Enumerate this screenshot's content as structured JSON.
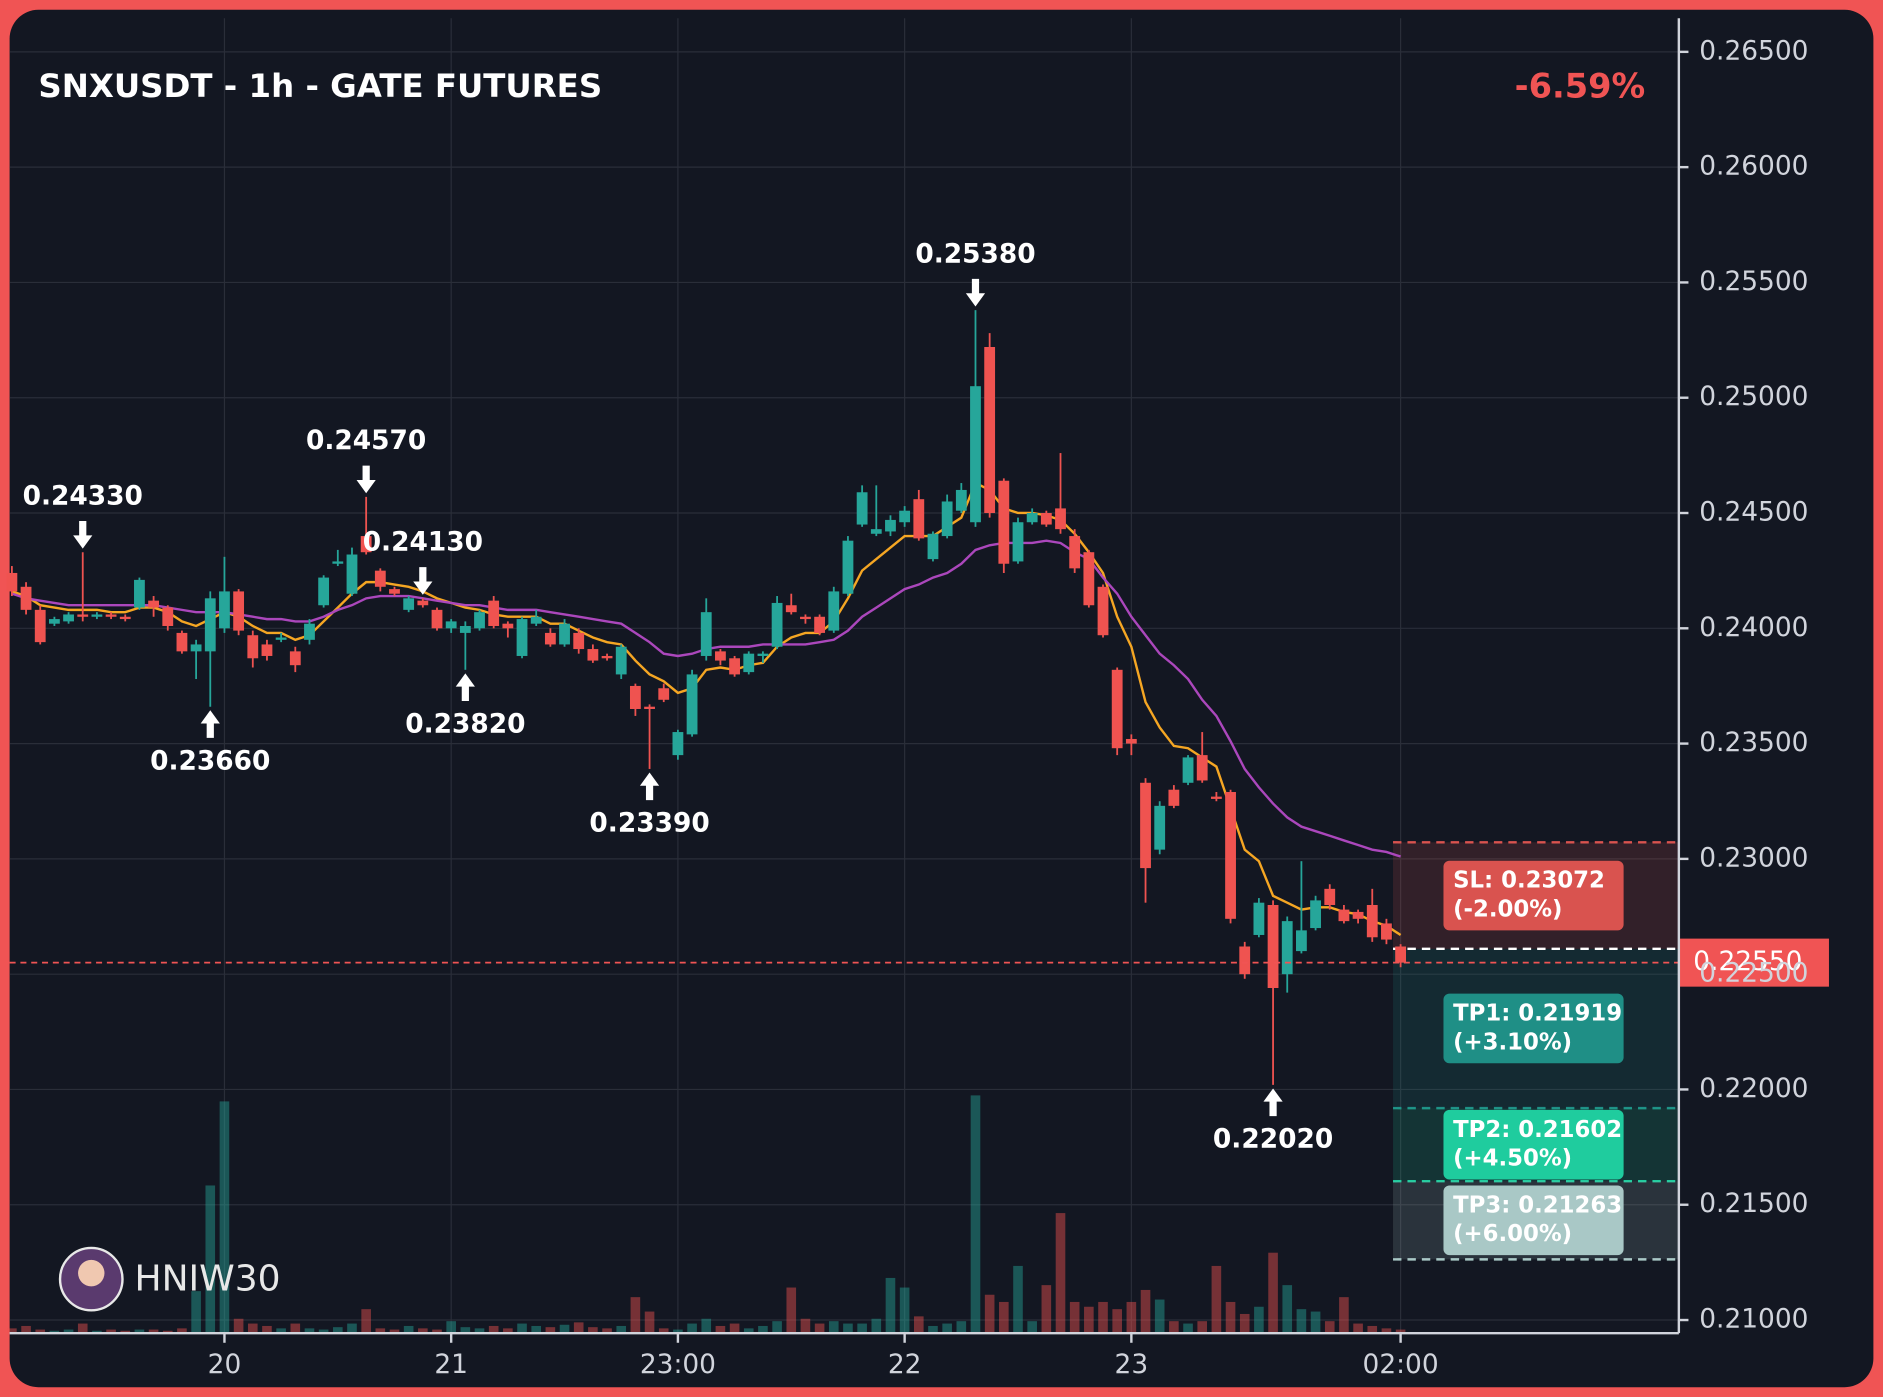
{
  "chart_data": {
    "type": "candlestick",
    "title": "SNXUSDT - 1h - GATE FUTURES",
    "change": "-6.59%",
    "watermark": "HNIW30",
    "categories": [
      null,
      null,
      null,
      null,
      null,
      null,
      null,
      null,
      null,
      null,
      null,
      null,
      null,
      null,
      null,
      "20",
      null,
      null,
      null,
      null,
      null,
      null,
      null,
      null,
      null,
      null,
      null,
      null,
      null,
      null,
      null,
      "21",
      null,
      null,
      null,
      null,
      null,
      null,
      null,
      null,
      null,
      null,
      null,
      null,
      null,
      null,
      null,
      "23:00",
      null,
      null,
      null,
      null,
      null,
      null,
      null,
      null,
      null,
      null,
      null,
      null,
      null,
      null,
      null,
      "22",
      null,
      null,
      null,
      null,
      null,
      null,
      null,
      null,
      null,
      null,
      null,
      null,
      null,
      null,
      null,
      "23",
      null,
      null,
      null,
      null,
      null,
      null,
      null,
      null,
      null,
      null,
      null,
      null,
      null,
      null,
      null,
      null,
      null,
      null,
      "02:00"
    ],
    "open": [
      0.2424,
      0.2418,
      0.2408,
      0.2402,
      0.2403,
      0.2406,
      0.2405,
      0.2406,
      0.2405,
      0.2409,
      0.2412,
      0.2409,
      0.2398,
      0.239,
      0.239,
      0.24,
      0.2416,
      0.2397,
      0.2393,
      0.2395,
      0.239,
      0.2395,
      0.241,
      0.2428,
      0.2415,
      0.244,
      0.2425,
      0.2417,
      0.2408,
      0.2412,
      0.2408,
      0.24,
      0.2398,
      0.24,
      0.2412,
      0.2402,
      0.2388,
      0.2402,
      0.2398,
      0.2393,
      0.2398,
      0.2391,
      0.2388,
      0.238,
      0.2375,
      0.2366,
      0.2374,
      0.2345,
      0.2354,
      0.2388,
      0.239,
      0.2387,
      0.2381,
      0.2388,
      0.2392,
      0.241,
      0.2405,
      0.2405,
      0.2399,
      0.2415,
      0.2445,
      0.2441,
      0.2442,
      0.2446,
      0.2456,
      0.243,
      0.244,
      0.2451,
      0.2446,
      0.2522,
      0.2464,
      0.2429,
      0.2446,
      0.245,
      0.2452,
      0.244,
      0.2433,
      0.2418,
      0.2382,
      0.2352,
      0.2333,
      0.2304,
      0.233,
      0.2333,
      0.2345,
      0.2327,
      0.2329,
      0.2262,
      0.2267,
      0.228,
      0.225,
      0.226,
      0.227,
      0.2287,
      0.2278,
      0.2277,
      0.228,
      0.2272,
      0.2262
    ],
    "high": [
      0.2427,
      0.242,
      0.241,
      0.2405,
      0.2407,
      0.2433,
      0.2407,
      0.2407,
      0.2406,
      0.2422,
      0.2414,
      0.241,
      0.2399,
      0.2395,
      0.2416,
      0.2431,
      0.2417,
      0.2399,
      0.2395,
      0.2398,
      0.2392,
      0.2404,
      0.2423,
      0.2434,
      0.2435,
      0.2457,
      0.2426,
      0.2418,
      0.2414,
      0.2413,
      0.2409,
      0.2404,
      0.2403,
      0.2408,
      0.2414,
      0.2403,
      0.2405,
      0.2408,
      0.24,
      0.2404,
      0.24,
      0.2393,
      0.2389,
      0.2393,
      0.2376,
      0.2367,
      0.2376,
      0.2356,
      0.2382,
      0.2413,
      0.2391,
      0.2388,
      0.239,
      0.239,
      0.2414,
      0.2415,
      0.2406,
      0.2406,
      0.2418,
      0.244,
      0.2462,
      0.2462,
      0.2449,
      0.2453,
      0.246,
      0.2442,
      0.2458,
      0.2463,
      0.2538,
      0.2528,
      0.2465,
      0.2448,
      0.2452,
      0.2451,
      0.2476,
      0.2443,
      0.2434,
      0.2419,
      0.2383,
      0.2354,
      0.2335,
      0.2325,
      0.2332,
      0.2345,
      0.2355,
      0.2329,
      0.233,
      0.2264,
      0.2283,
      0.2282,
      0.2275,
      0.2299,
      0.2284,
      0.2289,
      0.228,
      0.2278,
      0.2287,
      0.2274,
      0.2263
    ],
    "low": [
      0.2414,
      0.2406,
      0.2393,
      0.2401,
      0.2402,
      0.2403,
      0.2404,
      0.2404,
      0.2403,
      0.2408,
      0.2405,
      0.2399,
      0.2389,
      0.2378,
      0.2366,
      0.2398,
      0.2397,
      0.2383,
      0.2386,
      0.2394,
      0.2381,
      0.2393,
      0.2409,
      0.2427,
      0.2414,
      0.2432,
      0.2416,
      0.2414,
      0.2407,
      0.2409,
      0.2399,
      0.2398,
      0.2382,
      0.2399,
      0.24,
      0.2396,
      0.2387,
      0.2401,
      0.2392,
      0.2392,
      0.2389,
      0.2385,
      0.2386,
      0.2378,
      0.2362,
      0.2339,
      0.2368,
      0.2343,
      0.2353,
      0.2386,
      0.2384,
      0.2379,
      0.238,
      0.2385,
      0.2391,
      0.2406,
      0.2402,
      0.2397,
      0.2398,
      0.2414,
      0.2444,
      0.244,
      0.244,
      0.2444,
      0.2438,
      0.2429,
      0.2439,
      0.245,
      0.2444,
      0.2448,
      0.2424,
      0.2428,
      0.2445,
      0.2444,
      0.2441,
      0.2424,
      0.2409,
      0.2396,
      0.2345,
      0.2345,
      0.2281,
      0.2302,
      0.2322,
      0.2332,
      0.2333,
      0.2325,
      0.2272,
      0.2248,
      0.2266,
      0.2202,
      0.2242,
      0.2259,
      0.2269,
      0.2278,
      0.2272,
      0.2272,
      0.2264,
      0.2263,
      0.2253
    ],
    "close": [
      0.2416,
      0.2408,
      0.2394,
      0.2404,
      0.2406,
      0.2405,
      0.2406,
      0.2405,
      0.2404,
      0.2421,
      0.2409,
      0.2401,
      0.239,
      0.2393,
      0.2413,
      0.2416,
      0.2399,
      0.2387,
      0.2388,
      0.2396,
      0.2384,
      0.2402,
      0.2422,
      0.2429,
      0.2432,
      0.2433,
      0.2418,
      0.2415,
      0.2413,
      0.241,
      0.24,
      0.2403,
      0.2401,
      0.2407,
      0.2401,
      0.24,
      0.2404,
      0.2405,
      0.2393,
      0.2402,
      0.2391,
      0.2386,
      0.2387,
      0.2392,
      0.2365,
      0.2365,
      0.2369,
      0.2355,
      0.238,
      0.2407,
      0.2386,
      0.238,
      0.2389,
      0.2389,
      0.2411,
      0.2407,
      0.2404,
      0.2398,
      0.2416,
      0.2438,
      0.2459,
      0.2443,
      0.2447,
      0.2451,
      0.2439,
      0.2441,
      0.2455,
      0.246,
      0.2505,
      0.245,
      0.2428,
      0.2446,
      0.245,
      0.2445,
      0.2443,
      0.2426,
      0.241,
      0.2397,
      0.2348,
      0.235,
      0.2296,
      0.2323,
      0.2323,
      0.2344,
      0.2334,
      0.2326,
      0.2274,
      0.225,
      0.2281,
      0.2244,
      0.2273,
      0.2269,
      0.2282,
      0.228,
      0.2273,
      0.2274,
      0.2266,
      0.2265,
      0.2255
    ],
    "volume": [
      4,
      6,
      3,
      2,
      3,
      8,
      2,
      3,
      2,
      3,
      3,
      2,
      4,
      35,
      123,
      193,
      12,
      8,
      6,
      4,
      8,
      4,
      3,
      5,
      8,
      20,
      4,
      3,
      6,
      4,
      3,
      10,
      5,
      4,
      6,
      4,
      8,
      6,
      5,
      7,
      9,
      5,
      4,
      6,
      30,
      18,
      4,
      3,
      8,
      12,
      6,
      8,
      4,
      6,
      10,
      38,
      12,
      8,
      10,
      8,
      8,
      12,
      46,
      38,
      14,
      6,
      8,
      10,
      198,
      32,
      26,
      56,
      10,
      40,
      100,
      26,
      22,
      26,
      20,
      26,
      36,
      28,
      10,
      8,
      10,
      56,
      26,
      16,
      22,
      67,
      40,
      20,
      18,
      10,
      30,
      8,
      6,
      4,
      3
    ],
    "up_color": "#26a69a",
    "down_color": "#ef5350",
    "series": [
      {
        "color": "#f5a623",
        "values": [
          0.2416,
          0.2414,
          0.241,
          0.2409,
          0.2408,
          0.2408,
          0.2408,
          0.2407,
          0.2407,
          0.2409,
          0.2409,
          0.2407,
          0.2403,
          0.2401,
          0.2404,
          0.2407,
          0.2405,
          0.2401,
          0.2398,
          0.2398,
          0.2395,
          0.2397,
          0.2403,
          0.2409,
          0.2415,
          0.242,
          0.242,
          0.2419,
          0.2418,
          0.2416,
          0.2413,
          0.2411,
          0.2409,
          0.2408,
          0.2406,
          0.2405,
          0.2405,
          0.2405,
          0.2402,
          0.2402,
          0.2399,
          0.2396,
          0.2394,
          0.2393,
          0.2386,
          0.238,
          0.2377,
          0.2372,
          0.2374,
          0.2382,
          0.2383,
          0.2382,
          0.2384,
          0.2385,
          0.2392,
          0.2396,
          0.2398,
          0.2398,
          0.2403,
          0.2413,
          0.2425,
          0.243,
          0.2435,
          0.244,
          0.244,
          0.244,
          0.2444,
          0.2448,
          0.2463,
          0.246,
          0.2452,
          0.245,
          0.245,
          0.2449,
          0.2447,
          0.2441,
          0.2433,
          0.2424,
          0.2405,
          0.2392,
          0.2368,
          0.2357,
          0.2349,
          0.2348,
          0.2344,
          0.234,
          0.2322,
          0.2304,
          0.2299,
          0.2284,
          0.2281,
          0.2278,
          0.2279,
          0.2279,
          0.2277,
          0.2276,
          0.2273,
          0.2271,
          0.2267
        ]
      },
      {
        "color": "#ab47bc",
        "values": [
          0.2415,
          0.2413,
          0.2412,
          0.2411,
          0.241,
          0.241,
          0.241,
          0.241,
          0.241,
          0.241,
          0.241,
          0.2409,
          0.2408,
          0.2407,
          0.2407,
          0.2407,
          0.2406,
          0.2405,
          0.2404,
          0.2404,
          0.2403,
          0.2403,
          0.2405,
          0.2408,
          0.241,
          0.2413,
          0.2414,
          0.2414,
          0.2414,
          0.2413,
          0.2412,
          0.2411,
          0.241,
          0.241,
          0.2409,
          0.2408,
          0.2408,
          0.2408,
          0.2407,
          0.2406,
          0.2405,
          0.2404,
          0.2403,
          0.2402,
          0.2398,
          0.2394,
          0.2389,
          0.2388,
          0.2389,
          0.2391,
          0.2392,
          0.2392,
          0.2392,
          0.2393,
          0.2393,
          0.2393,
          0.2393,
          0.2394,
          0.2395,
          0.2399,
          0.2405,
          0.2409,
          0.2413,
          0.2417,
          0.2419,
          0.2422,
          0.2424,
          0.2428,
          0.2434,
          0.2436,
          0.2437,
          0.2437,
          0.2437,
          0.2438,
          0.2437,
          0.2433,
          0.243,
          0.2422,
          0.2415,
          0.2405,
          0.2397,
          0.2389,
          0.2384,
          0.2378,
          0.2369,
          0.2362,
          0.2351,
          0.2339,
          0.2331,
          0.2324,
          0.2318,
          0.2314,
          0.2312,
          0.231,
          0.2308,
          0.2306,
          0.2304,
          0.2303,
          0.2301
        ]
      }
    ],
    "ylim": [
      0.20943,
      0.26646
    ],
    "yticks": [
      {
        "value": 0.265,
        "label": "0.26500"
      },
      {
        "value": 0.26,
        "label": "0.26000"
      },
      {
        "value": 0.255,
        "label": "0.25500"
      },
      {
        "value": 0.25,
        "label": "0.25000"
      },
      {
        "value": 0.245,
        "label": "0.24500"
      },
      {
        "value": 0.24,
        "label": "0.24000"
      },
      {
        "value": 0.235,
        "label": "0.23500"
      },
      {
        "value": 0.23,
        "label": "0.23000"
      },
      {
        "value": 0.225,
        "label": "0.22500"
      },
      {
        "value": 0.22,
        "label": "0.22000"
      },
      {
        "value": 0.215,
        "label": "0.21500"
      },
      {
        "value": 0.21,
        "label": "0.21000"
      }
    ],
    "grid": true,
    "price_line": {
      "value": 0.2255,
      "label": "0.22550",
      "color": "#f05454"
    },
    "entry": 0.2261,
    "levels": [
      {
        "value": 0.23072,
        "label": "SL: 0.23072",
        "change": "(-2.00%)",
        "color": "#d9534f"
      },
      {
        "value": 0.21919,
        "label": "TP1: 0.21919",
        "change": "(+3.10%)",
        "color": "#1f8f86"
      },
      {
        "value": 0.21602,
        "label": "TP2: 0.21602",
        "change": "(+4.50%)",
        "color": "#1fcc9e"
      },
      {
        "value": 0.21263,
        "label": "TP3: 0.21263",
        "change": "(+6.00%)",
        "color": "#a9c8c6"
      }
    ],
    "annotations": [
      {
        "value": 0.2433,
        "label": "0.24330",
        "type": "high"
      },
      {
        "value": 0.2366,
        "label": "0.23660",
        "type": "low"
      },
      {
        "value": 0.2457,
        "label": "0.24570",
        "type": "high"
      },
      {
        "value": 0.2382,
        "label": "0.23820",
        "type": "low"
      },
      {
        "value": 0.2339,
        "label": "0.23390",
        "type": "low"
      },
      {
        "value": 0.2413,
        "label": "0.24130",
        "type": "high"
      },
      {
        "value": 0.2538,
        "label": "0.25380",
        "type": "high"
      },
      {
        "value": 0.2202,
        "label": "0.22020",
        "type": "low"
      }
    ]
  }
}
